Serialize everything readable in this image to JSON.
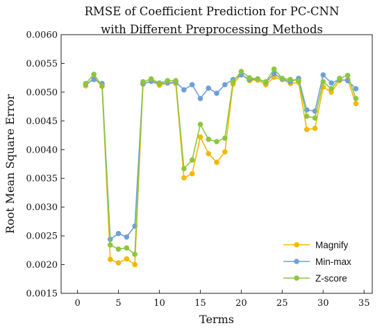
{
  "chart_data": {
    "type": "line",
    "title_lines": [
      "RMSE of Coefficient Prediction for PC-CNN",
      "with Different Preprocessing Methods"
    ],
    "xlabel": "Terms",
    "ylabel": "Root Mean Square Error",
    "xlim": [
      -2,
      36
    ],
    "ylim": [
      0.0015,
      0.006
    ],
    "xticks": [
      0,
      5,
      10,
      15,
      20,
      25,
      30,
      35
    ],
    "xtick_labels": [
      "0",
      "5",
      "10",
      "15",
      "20",
      "25",
      "30",
      "35"
    ],
    "yticks": [
      0.0015,
      0.002,
      0.0025,
      0.003,
      0.0035,
      0.004,
      0.0045,
      0.005,
      0.0055,
      0.006
    ],
    "ytick_labels": [
      "0.0015",
      "0.0020",
      "0.0025",
      "0.0030",
      "0.0035",
      "0.0040",
      "0.0045",
      "0.0050",
      "0.0055",
      "0.0060"
    ],
    "legend_position": "bottom-right",
    "grid": false,
    "x": [
      1,
      2,
      3,
      4,
      5,
      6,
      7,
      8,
      9,
      10,
      11,
      12,
      13,
      14,
      15,
      16,
      17,
      18,
      19,
      20,
      21,
      22,
      23,
      24,
      25,
      26,
      27,
      28,
      29,
      30,
      31,
      32,
      33,
      34
    ],
    "series": [
      {
        "name": "Magnify",
        "color": "#f5b800",
        "values": [
          0.00511,
          0.00525,
          0.0051,
          0.00209,
          0.00203,
          0.0021,
          0.002,
          0.00514,
          0.00519,
          0.00512,
          0.00516,
          0.00515,
          0.00351,
          0.00358,
          0.00422,
          0.00393,
          0.00378,
          0.00396,
          0.00514,
          0.00531,
          0.0052,
          0.00521,
          0.00513,
          0.00526,
          0.00522,
          0.00515,
          0.00517,
          0.00435,
          0.00437,
          0.00509,
          0.005,
          0.0052,
          0.00522,
          0.0048
        ]
      },
      {
        "name": "Min-max",
        "color": "#6f9fd8",
        "values": [
          0.00514,
          0.00522,
          0.00515,
          0.00244,
          0.00254,
          0.00248,
          0.00267,
          0.00515,
          0.00519,
          0.00515,
          0.00516,
          0.00518,
          0.00504,
          0.00513,
          0.00489,
          0.00507,
          0.00498,
          0.00513,
          0.00522,
          0.0053,
          0.00522,
          0.00523,
          0.00517,
          0.00532,
          0.00523,
          0.00518,
          0.00524,
          0.00469,
          0.00467,
          0.0053,
          0.00516,
          0.00522,
          0.0052,
          0.00506
        ]
      },
      {
        "name": "Z-score",
        "color": "#8cc63f",
        "values": [
          0.00515,
          0.00531,
          0.00511,
          0.00234,
          0.00227,
          0.00229,
          0.00218,
          0.00518,
          0.00523,
          0.00516,
          0.0052,
          0.0052,
          0.00367,
          0.00382,
          0.00444,
          0.00418,
          0.00414,
          0.0042,
          0.00518,
          0.00536,
          0.00525,
          0.00523,
          0.00518,
          0.0054,
          0.00524,
          0.00522,
          0.0052,
          0.00458,
          0.00455,
          0.00518,
          0.00506,
          0.00524,
          0.00529,
          0.00489
        ]
      }
    ]
  }
}
